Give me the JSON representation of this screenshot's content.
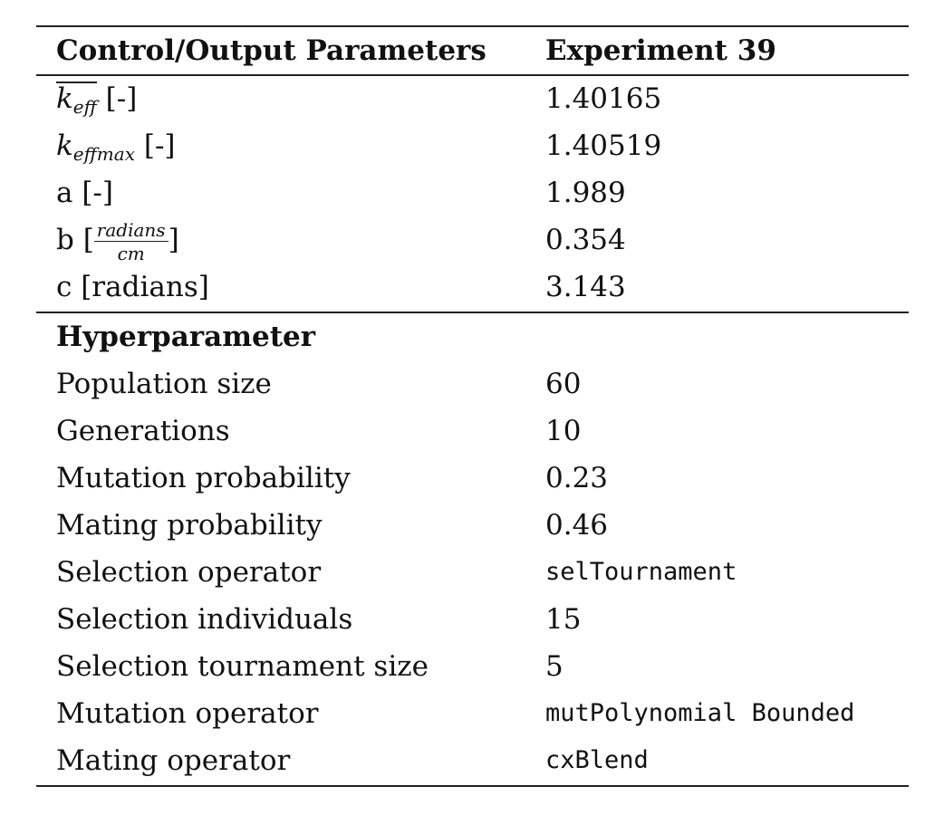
{
  "header": {
    "col1": "Control/Output Parameters",
    "col2": "Experiment 39"
  },
  "outputs": [
    {
      "symbol": "k",
      "subscript": "eff",
      "unit": "[-]",
      "value": "1.40165"
    },
    {
      "symbol": "k",
      "subscript": "effmax",
      "unit": "[-]",
      "value": "1.40519"
    },
    {
      "label": "a [-]",
      "value": "1.989"
    },
    {
      "prefix": "b [",
      "numerator": "radians",
      "denominator": "cm",
      "suffix": "]",
      "value": "0.354"
    },
    {
      "label": "c [radians]",
      "value": "3.143"
    }
  ],
  "hyper": {
    "title": "Hyperparameter",
    "rows": [
      {
        "label": "Population size",
        "value": "60"
      },
      {
        "label": "Generations",
        "value": "10"
      },
      {
        "label": "Mutation probability",
        "value": "0.23"
      },
      {
        "label": "Mating probability",
        "value": "0.46"
      },
      {
        "label": "Selection operator",
        "value": "selTournament"
      },
      {
        "label": "Selection individuals",
        "value": "15"
      },
      {
        "label": "Selection tournament size",
        "value": "5"
      },
      {
        "label": "Mutation operator",
        "value": "mutPolynomial Bounded"
      },
      {
        "label": "Mating operator",
        "value": "cxBlend"
      }
    ]
  }
}
